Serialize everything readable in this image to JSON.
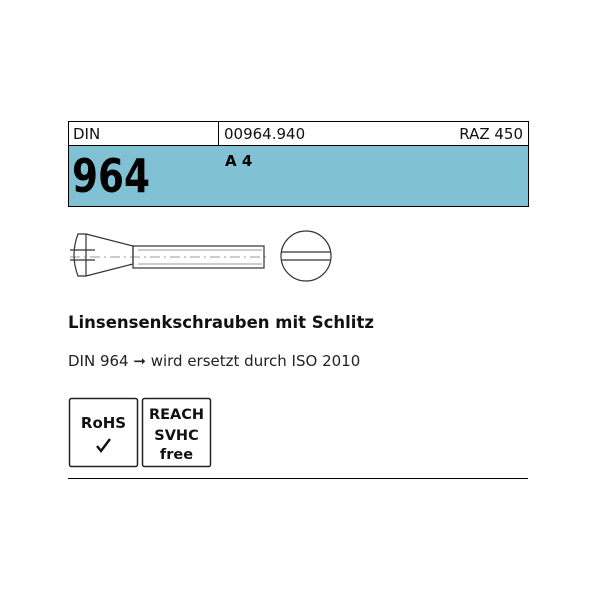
{
  "header": {
    "standard_label": "DIN",
    "article_number": "00964.940",
    "code": "RAZ 450",
    "number": "964",
    "material": "A 4"
  },
  "product": {
    "title": "Linsensenkschrauben mit Schlitz",
    "note": "DIN 964 ➞ wird ersetzt durch ISO 2010"
  },
  "badges": [
    {
      "lines": [
        "RoHS"
      ]
    },
    {
      "lines": [
        "REACH",
        "SVHC",
        "free"
      ]
    }
  ]
}
